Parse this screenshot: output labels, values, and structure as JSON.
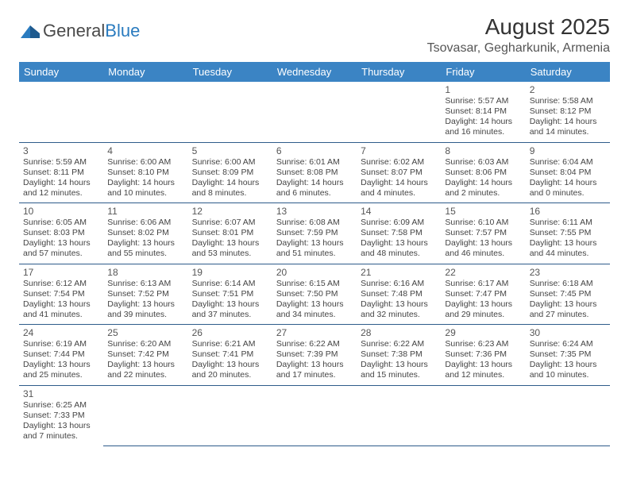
{
  "logo": {
    "text1": "General",
    "text2": "Blue"
  },
  "title": "August 2025",
  "location": "Tsovasar, Gegharkunik, Armenia",
  "colors": {
    "header_bg": "#3b84c4",
    "header_text": "#ffffff",
    "row_border": "#2e5c8a",
    "body_text": "#444444",
    "title_text": "#333333",
    "logo_gray": "#4a4a4a",
    "logo_blue": "#2a7bbf",
    "background": "#ffffff"
  },
  "weekdays": [
    "Sunday",
    "Monday",
    "Tuesday",
    "Wednesday",
    "Thursday",
    "Friday",
    "Saturday"
  ],
  "weeks": [
    [
      null,
      null,
      null,
      null,
      null,
      {
        "n": "1",
        "sr": "5:57 AM",
        "ss": "8:14 PM",
        "dl": "14 hours and 16 minutes."
      },
      {
        "n": "2",
        "sr": "5:58 AM",
        "ss": "8:12 PM",
        "dl": "14 hours and 14 minutes."
      }
    ],
    [
      {
        "n": "3",
        "sr": "5:59 AM",
        "ss": "8:11 PM",
        "dl": "14 hours and 12 minutes."
      },
      {
        "n": "4",
        "sr": "6:00 AM",
        "ss": "8:10 PM",
        "dl": "14 hours and 10 minutes."
      },
      {
        "n": "5",
        "sr": "6:00 AM",
        "ss": "8:09 PM",
        "dl": "14 hours and 8 minutes."
      },
      {
        "n": "6",
        "sr": "6:01 AM",
        "ss": "8:08 PM",
        "dl": "14 hours and 6 minutes."
      },
      {
        "n": "7",
        "sr": "6:02 AM",
        "ss": "8:07 PM",
        "dl": "14 hours and 4 minutes."
      },
      {
        "n": "8",
        "sr": "6:03 AM",
        "ss": "8:06 PM",
        "dl": "14 hours and 2 minutes."
      },
      {
        "n": "9",
        "sr": "6:04 AM",
        "ss": "8:04 PM",
        "dl": "14 hours and 0 minutes."
      }
    ],
    [
      {
        "n": "10",
        "sr": "6:05 AM",
        "ss": "8:03 PM",
        "dl": "13 hours and 57 minutes."
      },
      {
        "n": "11",
        "sr": "6:06 AM",
        "ss": "8:02 PM",
        "dl": "13 hours and 55 minutes."
      },
      {
        "n": "12",
        "sr": "6:07 AM",
        "ss": "8:01 PM",
        "dl": "13 hours and 53 minutes."
      },
      {
        "n": "13",
        "sr": "6:08 AM",
        "ss": "7:59 PM",
        "dl": "13 hours and 51 minutes."
      },
      {
        "n": "14",
        "sr": "6:09 AM",
        "ss": "7:58 PM",
        "dl": "13 hours and 48 minutes."
      },
      {
        "n": "15",
        "sr": "6:10 AM",
        "ss": "7:57 PM",
        "dl": "13 hours and 46 minutes."
      },
      {
        "n": "16",
        "sr": "6:11 AM",
        "ss": "7:55 PM",
        "dl": "13 hours and 44 minutes."
      }
    ],
    [
      {
        "n": "17",
        "sr": "6:12 AM",
        "ss": "7:54 PM",
        "dl": "13 hours and 41 minutes."
      },
      {
        "n": "18",
        "sr": "6:13 AM",
        "ss": "7:52 PM",
        "dl": "13 hours and 39 minutes."
      },
      {
        "n": "19",
        "sr": "6:14 AM",
        "ss": "7:51 PM",
        "dl": "13 hours and 37 minutes."
      },
      {
        "n": "20",
        "sr": "6:15 AM",
        "ss": "7:50 PM",
        "dl": "13 hours and 34 minutes."
      },
      {
        "n": "21",
        "sr": "6:16 AM",
        "ss": "7:48 PM",
        "dl": "13 hours and 32 minutes."
      },
      {
        "n": "22",
        "sr": "6:17 AM",
        "ss": "7:47 PM",
        "dl": "13 hours and 29 minutes."
      },
      {
        "n": "23",
        "sr": "6:18 AM",
        "ss": "7:45 PM",
        "dl": "13 hours and 27 minutes."
      }
    ],
    [
      {
        "n": "24",
        "sr": "6:19 AM",
        "ss": "7:44 PM",
        "dl": "13 hours and 25 minutes."
      },
      {
        "n": "25",
        "sr": "6:20 AM",
        "ss": "7:42 PM",
        "dl": "13 hours and 22 minutes."
      },
      {
        "n": "26",
        "sr": "6:21 AM",
        "ss": "7:41 PM",
        "dl": "13 hours and 20 minutes."
      },
      {
        "n": "27",
        "sr": "6:22 AM",
        "ss": "7:39 PM",
        "dl": "13 hours and 17 minutes."
      },
      {
        "n": "28",
        "sr": "6:22 AM",
        "ss": "7:38 PM",
        "dl": "13 hours and 15 minutes."
      },
      {
        "n": "29",
        "sr": "6:23 AM",
        "ss": "7:36 PM",
        "dl": "13 hours and 12 minutes."
      },
      {
        "n": "30",
        "sr": "6:24 AM",
        "ss": "7:35 PM",
        "dl": "13 hours and 10 minutes."
      }
    ],
    [
      {
        "n": "31",
        "sr": "6:25 AM",
        "ss": "7:33 PM",
        "dl": "13 hours and 7 minutes."
      },
      null,
      null,
      null,
      null,
      null,
      null
    ]
  ],
  "labels": {
    "sunrise": "Sunrise:",
    "sunset": "Sunset:",
    "daylight": "Daylight:"
  }
}
